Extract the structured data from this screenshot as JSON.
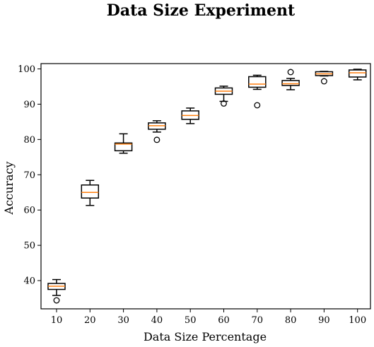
{
  "chart_data": {
    "type": "box",
    "title": "Data Size Experiment",
    "xlabel": "Data Size Percentage",
    "ylabel": "Accuracy",
    "ylim": [
      32,
      101.5
    ],
    "yticks": [
      40,
      50,
      60,
      70,
      80,
      90,
      100
    ],
    "categories": [
      "10",
      "20",
      "30",
      "40",
      "50",
      "60",
      "70",
      "80",
      "90",
      "100"
    ],
    "median_color": "#ff7f0e",
    "boxes": [
      {
        "category": "10",
        "whislo": 35.8,
        "q1": 37.5,
        "med": 38.4,
        "q3": 39.2,
        "whishi": 40.3,
        "fliers": [
          34.4
        ]
      },
      {
        "category": "20",
        "whislo": 61.3,
        "q1": 63.4,
        "med": 65.0,
        "q3": 67.1,
        "whishi": 68.4,
        "fliers": []
      },
      {
        "category": "30",
        "whislo": 76.1,
        "q1": 76.8,
        "med": 78.7,
        "q3": 79.0,
        "whishi": 81.6,
        "fliers": []
      },
      {
        "category": "40",
        "whislo": 82.1,
        "q1": 82.9,
        "med": 83.9,
        "q3": 84.7,
        "whishi": 85.3,
        "fliers": [
          79.9
        ]
      },
      {
        "category": "50",
        "whislo": 84.5,
        "q1": 85.7,
        "med": 86.8,
        "q3": 88.1,
        "whishi": 88.9,
        "fliers": []
      },
      {
        "category": "60",
        "whislo": 90.8,
        "q1": 92.8,
        "med": 93.7,
        "q3": 94.6,
        "whishi": 95.1,
        "fliers": [
          90.2
        ]
      },
      {
        "category": "70",
        "whislo": 94.2,
        "q1": 94.8,
        "med": 95.7,
        "q3": 97.8,
        "whishi": 98.2,
        "fliers": [
          89.7
        ]
      },
      {
        "category": "80",
        "whislo": 94.1,
        "q1": 95.3,
        "med": 95.8,
        "q3": 96.7,
        "whishi": 97.3,
        "fliers": [
          99.1
        ]
      },
      {
        "category": "90",
        "whislo": 98.0,
        "q1": 98.1,
        "med": 98.6,
        "q3": 99.2,
        "whishi": 99.3,
        "fliers": [
          96.5
        ]
      },
      {
        "category": "100",
        "whislo": 96.9,
        "q1": 97.7,
        "med": 98.9,
        "q3": 99.7,
        "whishi": 99.9,
        "fliers": []
      }
    ]
  }
}
